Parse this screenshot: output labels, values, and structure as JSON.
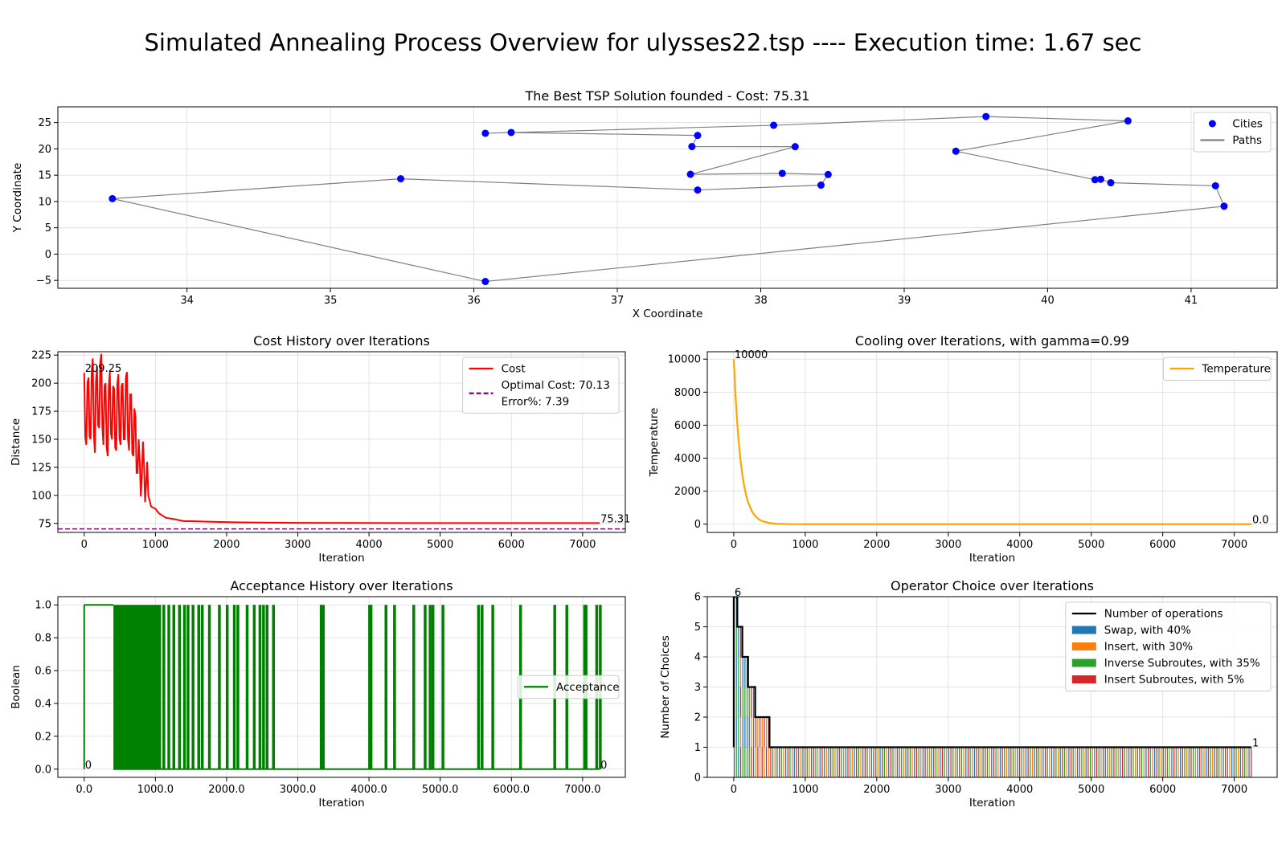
{
  "figure": {
    "title": "Simulated Annealing Process Overview for ulysses22.tsp ---- Execution time: 1.67 sec"
  },
  "chart_data": [
    {
      "id": "tsp",
      "type": "scatter",
      "title": "The Best TSP Solution founded - Cost: 75.31",
      "xlabel": "X Coordinate",
      "ylabel": "Y Coordinate",
      "xlim": [
        33.1,
        41.6
      ],
      "ylim": [
        -6.5,
        28.0
      ],
      "xticks": [
        34,
        35,
        36,
        37,
        38,
        39,
        40,
        41
      ],
      "yticks": [
        -5,
        0,
        5,
        10,
        15,
        20,
        25
      ],
      "grid": true,
      "legend_position": "top-right",
      "legend": [
        {
          "label": "Cities",
          "kind": "marker",
          "color": "#0000ff"
        },
        {
          "label": "Paths",
          "kind": "line",
          "color": "#808080"
        }
      ],
      "series": [
        {
          "name": "Paths",
          "kind": "line",
          "color": "#808080",
          "x": [
            33.48,
            35.49,
            37.56,
            38.42,
            38.47,
            38.15,
            37.51,
            38.24,
            37.52,
            37.56,
            36.26,
            36.08,
            38.09,
            39.57,
            40.56,
            39.36,
            40.33,
            40.37,
            40.44,
            41.17,
            41.23,
            36.08,
            33.48
          ],
          "y": [
            10.54,
            14.32,
            12.19,
            13.11,
            15.13,
            15.35,
            15.17,
            20.42,
            20.44,
            22.56,
            23.12,
            22.97,
            24.48,
            26.15,
            25.32,
            19.56,
            14.14,
            14.23,
            13.57,
            12.99,
            9.1,
            -5.21,
            10.54
          ]
        },
        {
          "name": "Cities",
          "kind": "marker",
          "color": "#0000ff",
          "x": [
            33.48,
            35.49,
            37.56,
            38.42,
            38.47,
            38.15,
            37.51,
            38.24,
            37.52,
            37.56,
            36.26,
            36.08,
            38.09,
            39.57,
            40.56,
            39.36,
            40.33,
            40.37,
            40.44,
            41.17,
            41.23,
            36.08
          ],
          "y": [
            10.54,
            14.32,
            12.19,
            13.11,
            15.13,
            15.35,
            15.17,
            20.42,
            20.44,
            22.56,
            23.12,
            22.97,
            24.48,
            26.15,
            25.32,
            19.56,
            14.14,
            14.23,
            13.57,
            12.99,
            9.1,
            -5.21
          ]
        }
      ]
    },
    {
      "id": "cost",
      "type": "line",
      "title": "Cost History over Iterations",
      "xlabel": "Iteration",
      "ylabel": "Distance",
      "xlim": [
        -370,
        7600
      ],
      "ylim": [
        67,
        228
      ],
      "xticks": [
        0,
        1000,
        2000,
        3000,
        4000,
        5000,
        6000,
        7000
      ],
      "yticks": [
        75,
        100,
        125,
        150,
        175,
        200,
        225
      ],
      "grid": true,
      "legend_position": "top-right",
      "legend": [
        {
          "label": "Cost",
          "kind": "line",
          "color": "#ff0000"
        },
        {
          "label": "Optimal Cost: 70.13",
          "label2": "Error%: 7.39",
          "kind": "dashed",
          "color": "#800080"
        }
      ],
      "annotations": [
        {
          "text": "209.25",
          "x": 0,
          "y": 209.25
        },
        {
          "text": "75.31",
          "x": 7240,
          "y": 75.31
        }
      ],
      "series": [
        {
          "name": "Cost",
          "kind": "line",
          "color": "#ff0000",
          "x": [
            0,
            30,
            60,
            90,
            120,
            150,
            180,
            210,
            240,
            270,
            300,
            330,
            360,
            390,
            420,
            450,
            480,
            510,
            540,
            570,
            600,
            630,
            660,
            690,
            720,
            750,
            780,
            810,
            840,
            870,
            900,
            940,
            1000,
            1050,
            1100,
            1150,
            1250,
            1400,
            1500,
            1800,
            2100,
            2500,
            3000,
            4000,
            5000,
            6000,
            7240
          ],
          "y": [
            209.25,
            145,
            205,
            150,
            222,
            138,
            215,
            160,
            226,
            145,
            200,
            135,
            210,
            150,
            195,
            140,
            208,
            145,
            200,
            150,
            210,
            140,
            190,
            135,
            170,
            120,
            130,
            118,
            128,
            110,
            100,
            90,
            88,
            84,
            82,
            80,
            79,
            77,
            77,
            76.5,
            76,
            75.8,
            75.5,
            75.4,
            75.31,
            75.31,
            75.31
          ]
        },
        {
          "name": "Optimal Cost: 70.13",
          "kind": "dashed",
          "color": "#800080",
          "x": [
            -370,
            7600
          ],
          "y": [
            70.13,
            70.13
          ]
        }
      ]
    },
    {
      "id": "cooling",
      "type": "line",
      "title": "Cooling over Iterations, with gamma=0.99",
      "xlabel": "Iteration",
      "ylabel": "Temperature",
      "xlim": [
        -370,
        7600
      ],
      "ylim": [
        -500,
        10450
      ],
      "xticks": [
        0,
        1000,
        2000,
        3000,
        4000,
        5000,
        6000,
        7000
      ],
      "yticks": [
        0,
        2000,
        4000,
        6000,
        8000,
        10000
      ],
      "grid": true,
      "legend_position": "top-right",
      "legend": [
        {
          "label": "Temperature",
          "kind": "line",
          "color": "#ffa500"
        }
      ],
      "annotations": [
        {
          "text": "10000",
          "x": 0,
          "y": 10000
        },
        {
          "text": "0.0",
          "x": 7240,
          "y": 0
        }
      ],
      "series": [
        {
          "name": "Temperature",
          "kind": "line",
          "color": "#ffa500",
          "x": [
            0,
            25,
            50,
            75,
            100,
            125,
            150,
            175,
            200,
            250,
            300,
            350,
            400,
            500,
            600,
            800,
            1000,
            7240
          ],
          "y": [
            10000,
            7780,
            6050,
            4710,
            3660,
            2850,
            2220,
            1730,
            1340,
            810,
            490,
            300,
            180,
            66,
            24,
            3,
            0.4,
            0
          ]
        }
      ]
    },
    {
      "id": "acceptance",
      "type": "line",
      "title": "Acceptance History over Iterations",
      "xlabel": "Iteration",
      "ylabel": "Boolean",
      "xlim": [
        -370,
        7600
      ],
      "ylim": [
        -0.05,
        1.05
      ],
      "xticks": [
        0,
        1000,
        2000,
        3000,
        4000,
        5000,
        6000,
        7000
      ],
      "yticks": [
        0.0,
        0.2,
        0.4,
        0.6,
        0.8,
        1.0
      ],
      "grid": true,
      "legend_position": "center-right",
      "legend": [
        {
          "label": "Acceptance",
          "kind": "line",
          "color": "#008000"
        }
      ],
      "annotations": [
        {
          "text": "0",
          "x": 0,
          "y": 0
        },
        {
          "text": "0",
          "x": 7240,
          "y": 0
        }
      ],
      "dense_region": [
        410,
        1080
      ],
      "spikes": [
        1110,
        1180,
        1250,
        1330,
        1400,
        1450,
        1520,
        1600,
        1650,
        1750,
        1890,
        2000,
        2100,
        2150,
        2280,
        2380,
        2460,
        2510,
        2560,
        2650,
        3320,
        3350,
        4000,
        4020,
        4230,
        4350,
        4620,
        4780,
        4850,
        4890,
        5030,
        5530,
        5580,
        5730,
        6120,
        6600,
        6770,
        7020,
        7040,
        7190,
        7240
      ],
      "series": [
        {
          "name": "Acceptance",
          "kind": "line",
          "color": "#008000"
        }
      ]
    },
    {
      "id": "operators",
      "type": "bar",
      "title": "Operator Choice over Iterations",
      "xlabel": "Iteration",
      "ylabel": "Number of Choices",
      "xlim": [
        -370,
        7600
      ],
      "ylim": [
        0,
        6
      ],
      "xticks": [
        0,
        1000,
        2000,
        3000,
        4000,
        5000,
        6000,
        7000
      ],
      "yticks": [
        0,
        1,
        2,
        3,
        4,
        5,
        6
      ],
      "grid": true,
      "legend_position": "top-right",
      "legend": [
        {
          "label": "Number of operations",
          "kind": "line",
          "color": "#000000"
        },
        {
          "label": "Swap, with 40%",
          "kind": "patch",
          "color": "#1f77b4"
        },
        {
          "label": "Insert, with 30%",
          "kind": "patch",
          "color": "#ff7f0e"
        },
        {
          "label": "Inverse Subroutes, with 35%",
          "kind": "patch",
          "color": "#2ca02c"
        },
        {
          "label": "Insert Subroutes, with 5%",
          "kind": "patch",
          "color": "#d62728"
        }
      ],
      "annotations": [
        {
          "text": "6",
          "x": 0,
          "y": 6
        },
        {
          "text": "1",
          "x": 7240,
          "y": 1
        }
      ],
      "series": [
        {
          "name": "Number of operations",
          "kind": "step",
          "color": "#000000",
          "x": [
            0,
            0,
            50,
            50,
            120,
            120,
            200,
            200,
            300,
            300,
            500,
            500,
            7240
          ],
          "y": [
            1,
            6,
            6,
            5,
            5,
            4,
            4,
            3,
            3,
            2,
            2,
            1,
            1
          ]
        }
      ]
    }
  ]
}
